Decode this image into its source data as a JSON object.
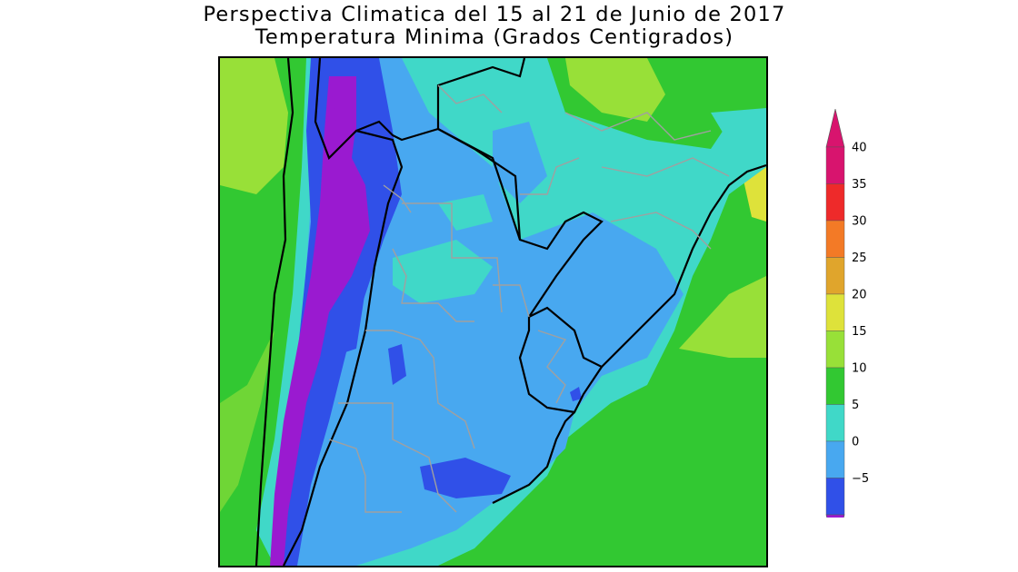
{
  "title": {
    "line1": "Perspectiva Climatica del 15 al 21 de Junio de 2017",
    "line2": "Temperatura Minima (Grados Centigrados)"
  },
  "legend": {
    "levels": [
      {
        "label": "40",
        "color": "#d8146e"
      },
      {
        "label": "35",
        "color": "#ee2a2a"
      },
      {
        "label": "30",
        "color": "#f37a26"
      },
      {
        "label": "25",
        "color": "#e0a52c"
      },
      {
        "label": "20",
        "color": "#dee23a"
      },
      {
        "label": "15",
        "color": "#98e038"
      },
      {
        "label": "10",
        "color": "#32c832"
      },
      {
        "label": "5",
        "color": "#40d8c8"
      },
      {
        "label": "0",
        "color": "#48a8f0"
      },
      {
        "label": "−5",
        "color": "#3050e8"
      }
    ],
    "bottom_color": "#9a1ad0",
    "top_color": "#d8146e"
  },
  "map_colors": {
    "green": "#32c832",
    "light_green": "#98e038",
    "yellow": "#dee23a",
    "cyan": "#40d8c8",
    "blue": "#48a8f0",
    "dark_blue": "#3050e8",
    "purple": "#9a1ad0",
    "border": "#000000",
    "province": "#a0a0a0"
  }
}
